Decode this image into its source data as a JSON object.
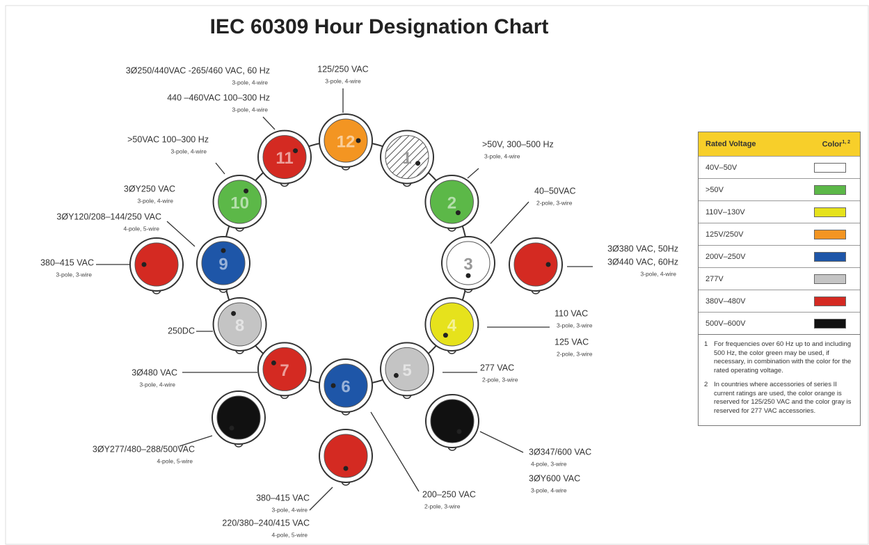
{
  "title": "IEC 60309 Hour Designation Chart",
  "hours": [
    {
      "label": "1",
      "color": "#ffffff",
      "hatched": true
    },
    {
      "label": "2",
      "color": "#5cb848"
    },
    {
      "label": "3",
      "color": "#ffffff"
    },
    {
      "label": "4",
      "color": "#e6e21c"
    },
    {
      "label": "5",
      "color": "#c4c4c4"
    },
    {
      "label": "6",
      "color": "#1e56a8"
    },
    {
      "label": "7",
      "color": "#d42a22"
    },
    {
      "label": "8",
      "color": "#c4c4c4"
    },
    {
      "label": "9",
      "color": "#1e56a8"
    },
    {
      "label": "10",
      "color": "#5cb848"
    },
    {
      "label": "11",
      "color": "#d42a22"
    },
    {
      "label": "12",
      "color": "#f39522"
    }
  ],
  "extra_plugs": [
    {
      "color": "#d42a22"
    },
    {
      "color": "#d42a22"
    },
    {
      "color": "#111111"
    },
    {
      "color": "#111111"
    },
    {
      "color": "#d42a22"
    }
  ],
  "labels": [
    {
      "lines": [
        "3Ø250/440VAC -265/460 VAC, 60 Hz"
      ],
      "sub": "3-pole, 4-wire"
    },
    {
      "lines": [
        "440 –460VAC 100–300 Hz"
      ],
      "sub": "3-pole, 4-wire"
    },
    {
      "lines": [
        "125/250 VAC"
      ],
      "sub": "3-pole, 4-wire"
    },
    {
      "lines": [
        ">50VAC 100–300 Hz"
      ],
      "sub": "3-pole, 4-wire"
    },
    {
      "lines": [
        ">50V, 300–500 Hz"
      ],
      "sub": "3-pole, 4-wire"
    },
    {
      "lines": [
        "40–50VAC"
      ],
      "sub": "2-pole, 3-wire"
    },
    {
      "lines": [
        "3ØY250 VAC"
      ],
      "sub": "3-pole, 4-wire"
    },
    {
      "lines": [
        "3ØY120/208–144/250 VAC"
      ],
      "sub": "4-pole, 5-wire"
    },
    {
      "lines": [
        "380–415 VAC"
      ],
      "sub": "3-pole, 3-wire"
    },
    {
      "lines": [
        "3Ø380 VAC, 50Hz",
        "3Ø440 VAC, 60Hz"
      ],
      "sub": "3-pole, 4-wire"
    },
    {
      "lines": [
        "110 VAC"
      ],
      "sub": "3-pole, 3-wire"
    },
    {
      "lines": [
        "125 VAC"
      ],
      "sub": "2-pole, 3-wire"
    },
    {
      "lines": [
        "250DC"
      ]
    },
    {
      "lines": [
        "277 VAC"
      ],
      "sub": "2-pole, 3-wire"
    },
    {
      "lines": [
        "3Ø480 VAC"
      ],
      "sub": "3-pole, 4-wire"
    },
    {
      "lines": [
        "3ØY277/480–288/500VAC"
      ],
      "sub": "4-pole, 5-wire"
    },
    {
      "lines": [
        "3Ø347/600 VAC"
      ],
      "sub": "4-pole, 3-wire"
    },
    {
      "lines": [
        "3ØY600 VAC"
      ],
      "sub": "3-pole, 4-wire"
    },
    {
      "lines": [
        "200–250 VAC"
      ],
      "sub": "2-pole, 3-wire"
    },
    {
      "lines": [
        "380–415 VAC"
      ],
      "sub": "3-pole, 4-wire"
    },
    {
      "lines": [
        "220/380–240/415 VAC"
      ],
      "sub": "4-pole, 5-wire"
    }
  ],
  "legend": {
    "headers": [
      "Rated Voltage",
      "Color"
    ],
    "header_sup": "1, 2",
    "rows": [
      {
        "voltage": "40V–50V",
        "color": "#ffffff"
      },
      {
        "voltage": ">50V",
        "color": "#5cb848"
      },
      {
        "voltage": "110V–130V",
        "color": "#e6e21c"
      },
      {
        "voltage": "125V/250V",
        "color": "#f39522"
      },
      {
        "voltage": "200V–250V",
        "color": "#1e56a8"
      },
      {
        "voltage": "277V",
        "color": "#c4c4c4"
      },
      {
        "voltage": "380V–480V",
        "color": "#d42a22"
      },
      {
        "voltage": "500V–600V",
        "color": "#111111"
      }
    ],
    "notes": [
      {
        "number": "1",
        "text": "For frequencies over 60 Hz up to and including 500 Hz, the color green may be used, if necessary, in combination with the color for the rated operating voltage."
      },
      {
        "number": "2",
        "text": "In countries where accessories of series II current ratings are used, the color orange is reserved for 125/250 VAC and the color gray is reserved for 277 VAC accessories."
      }
    ]
  }
}
